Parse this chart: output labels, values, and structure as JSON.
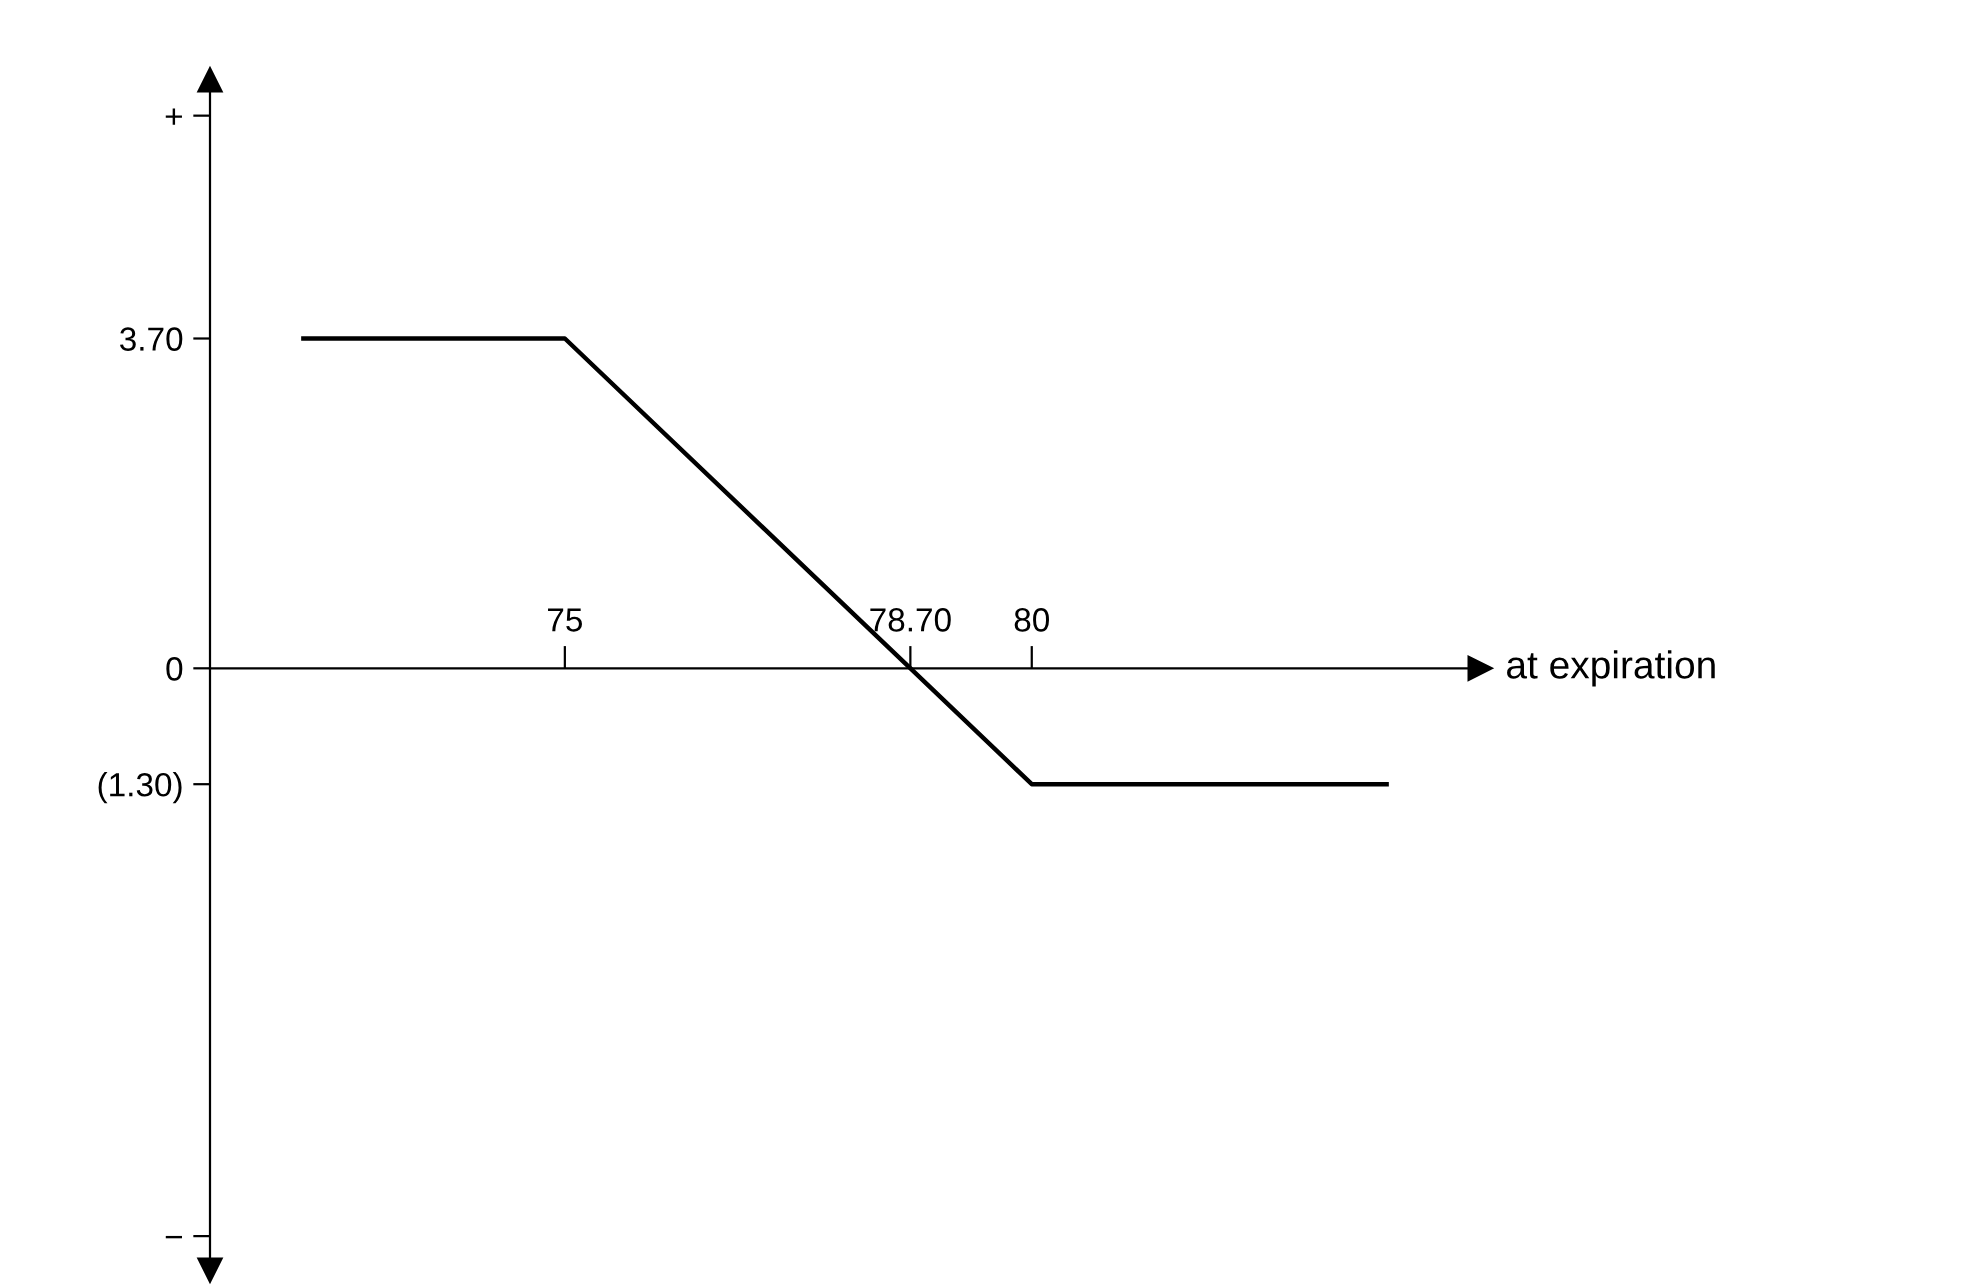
{
  "chart_data": {
    "type": "line",
    "xlabel": "at expiration",
    "x": [
      72.2,
      75,
      80,
      83.8
    ],
    "series": [
      {
        "color": "#000000",
        "values": [
          3.7,
          3.7,
          -1.3,
          -1.3
        ]
      }
    ],
    "xlim": [
      71.2,
      84.8
    ],
    "ylim": [
      -6.75,
      6.6
    ],
    "xticks": [
      75,
      {
        "value": 78.7,
        "label": "78.70"
      },
      80
    ],
    "yticks": [
      {
        "value": 6.2,
        "label": "+"
      },
      {
        "value": 3.7,
        "label": "3.70"
      },
      0,
      {
        "value": -1.3,
        "label": "(1.30)"
      },
      {
        "value": -6.37,
        "label": "−"
      }
    ],
    "grid": false,
    "legend": false,
    "marker": "none",
    "line_style": "solid"
  }
}
